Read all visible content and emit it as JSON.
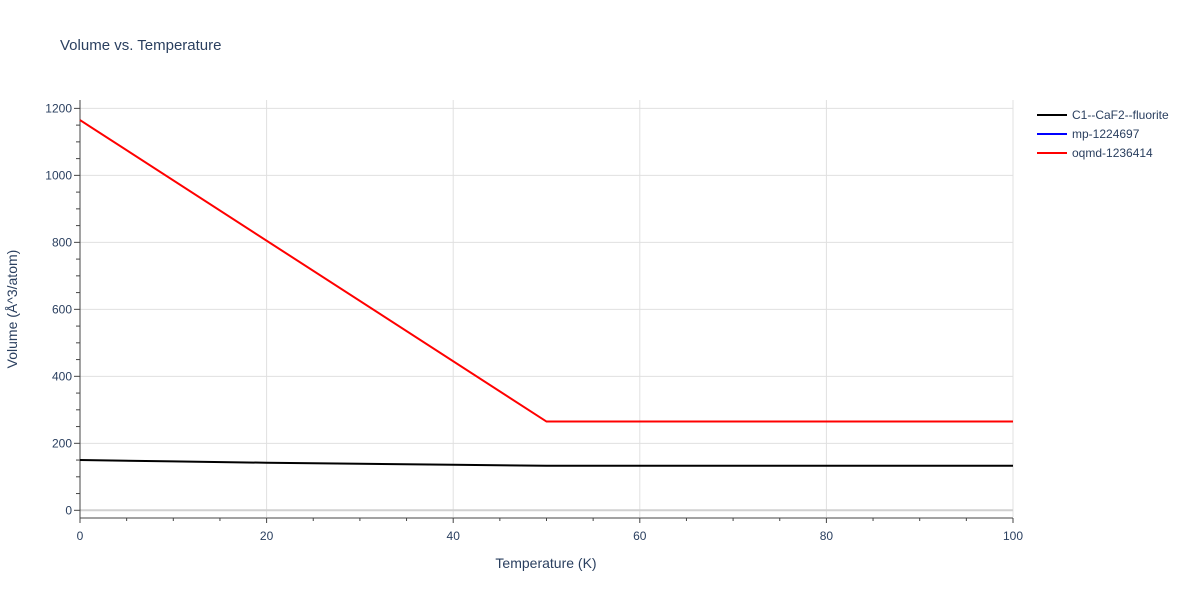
{
  "chart_data": {
    "type": "line",
    "title": "Volume vs. Temperature",
    "xlabel": "Temperature (K)",
    "ylabel": "Volume (Å^3/atom)",
    "xlim": [
      0,
      100
    ],
    "ylim": [
      -20,
      1225
    ],
    "x_ticks": [
      0,
      20,
      40,
      60,
      80,
      100
    ],
    "y_ticks": [
      0,
      200,
      400,
      600,
      800,
      1000,
      1200
    ],
    "grid": true,
    "legend_position": "top-right",
    "series": [
      {
        "name": "C1--CaF2--fluorite",
        "color": "#000000",
        "x": [
          0,
          10,
          20,
          30,
          40,
          50,
          60,
          70,
          80,
          90,
          100
        ],
        "y": [
          150,
          146,
          142,
          139,
          136,
          133,
          133,
          133,
          133,
          133,
          133
        ]
      },
      {
        "name": "mp-1224697",
        "color": "#0000ff",
        "x": [],
        "y": []
      },
      {
        "name": "oqmd-1236414",
        "color": "#ff0000",
        "x": [
          0,
          50,
          100
        ],
        "y": [
          1165,
          265,
          265
        ]
      }
    ]
  }
}
